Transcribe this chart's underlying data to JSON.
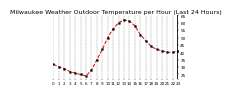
{
  "title": "Milwaukee Weather Outdoor Temperature per Hour (Last 24 Hours)",
  "hours": [
    0,
    1,
    2,
    3,
    4,
    5,
    6,
    7,
    8,
    9,
    10,
    11,
    12,
    13,
    14,
    15,
    16,
    17,
    18,
    19,
    20,
    21,
    22,
    23
  ],
  "temps": [
    32,
    30,
    29,
    27,
    26,
    25,
    24,
    28,
    35,
    42,
    50,
    56,
    60,
    62,
    61,
    58,
    52,
    48,
    44,
    42,
    41,
    40,
    40,
    41
  ],
  "line_color": "#cc0000",
  "marker_color": "#000000",
  "background_color": "#ffffff",
  "grid_color": "#888888",
  "ylim": [
    22,
    65
  ],
  "xlim": [
    0,
    23
  ],
  "title_fontsize": 4.5,
  "tick_fontsize": 3.0,
  "yticks": [
    25,
    30,
    35,
    40,
    45,
    50,
    55,
    60,
    65
  ],
  "ytick_labels": [
    "25",
    "30",
    "35",
    "40",
    "45",
    "50",
    "55",
    "60",
    "65"
  ]
}
